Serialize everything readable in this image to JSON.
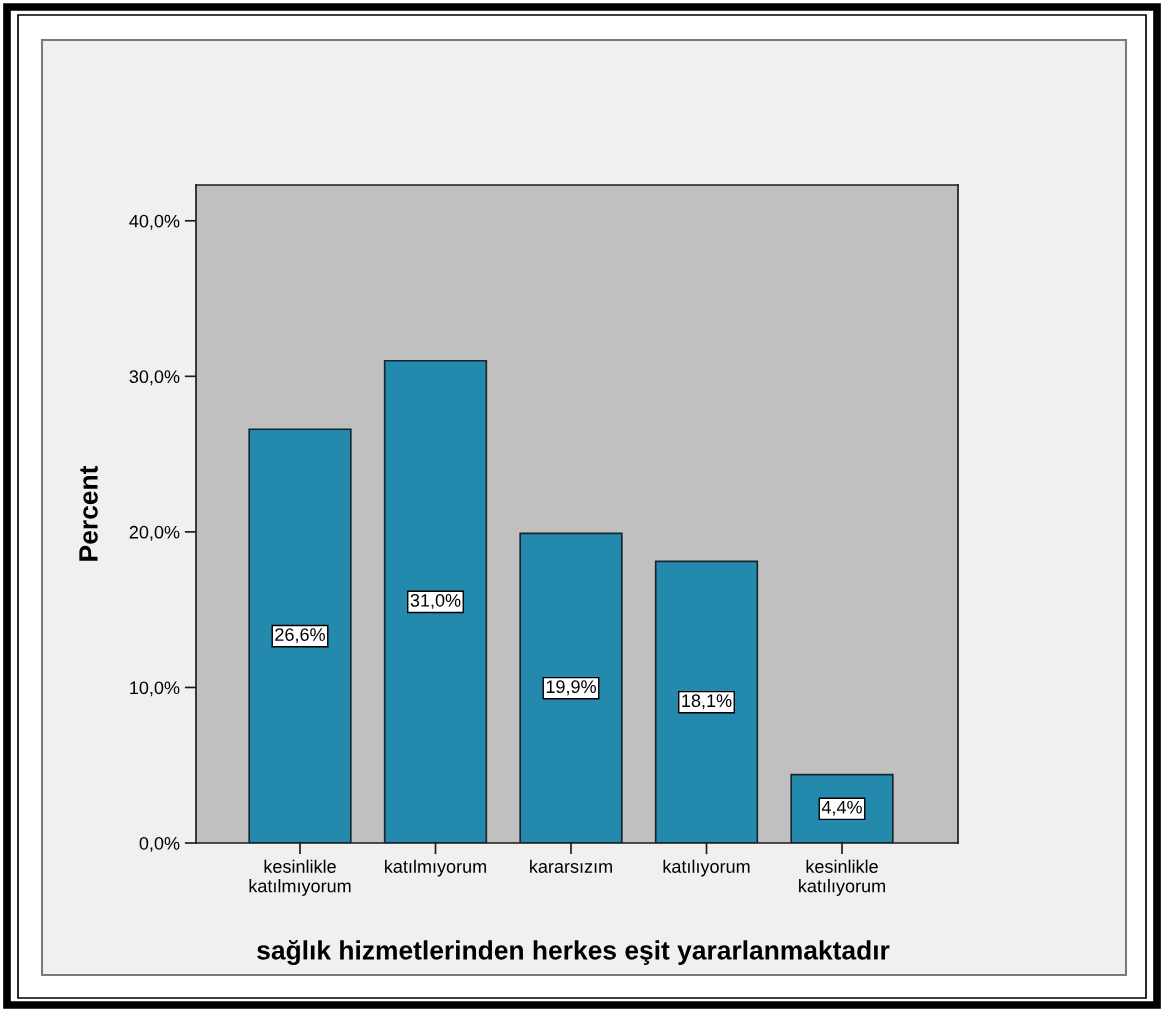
{
  "chart_data": {
    "type": "bar",
    "xlabel": "sağlık hizmetlerinden herkes eşit yararlanmaktadır",
    "ylabel": "Percent",
    "categories": [
      "kesinlikle katılmıyorum",
      "katılmıyorum",
      "kararsızım",
      "katılıyorum",
      "kesinlikle katılıyorum"
    ],
    "values": [
      26.6,
      31.0,
      19.9,
      18.1,
      4.4
    ],
    "value_labels": [
      "26,6%",
      "31,0%",
      "19,9%",
      "18,1%",
      "4,4%"
    ],
    "color": "#248aad",
    "ylim": [
      0,
      42.3
    ],
    "yticks": [
      {
        "value": 0,
        "label": "0,0%"
      },
      {
        "value": 10,
        "label": "10,0%"
      },
      {
        "value": 20,
        "label": "20,0%"
      },
      {
        "value": 30,
        "label": "30,0%"
      },
      {
        "value": 40,
        "label": "40,0%"
      }
    ]
  }
}
